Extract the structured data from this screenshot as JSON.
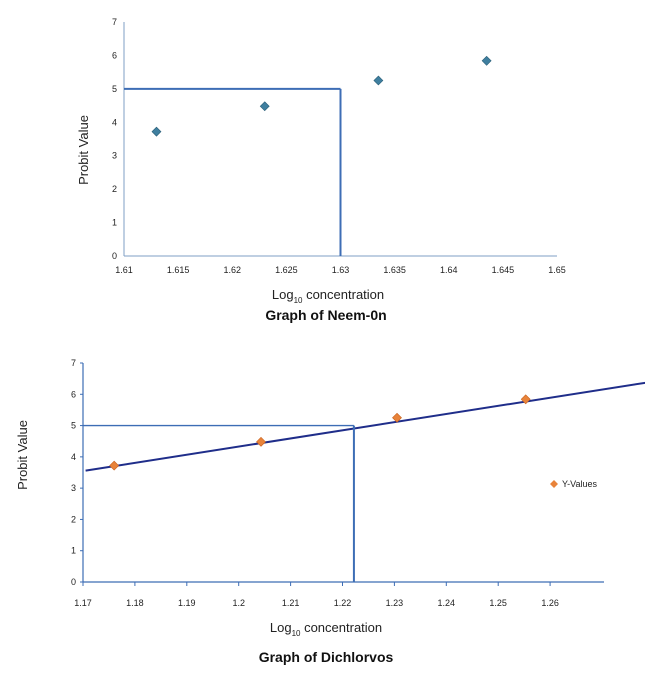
{
  "chart_data": [
    {
      "type": "scatter",
      "title": "Graph  of Neem-0n",
      "xlabel_main": "Log",
      "xlabel_sub": "10",
      "xlabel_rest": " concentration",
      "ylabel": "Probit Value",
      "xlim": [
        1.61,
        1.65
      ],
      "ylim": [
        0,
        7
      ],
      "x_ticks": [
        "1.61",
        "1.615",
        "1.62",
        "1.625",
        "1.63",
        "1.635",
        "1.64",
        "1.645",
        "1.65"
      ],
      "y_ticks": [
        "0",
        "1",
        "2",
        "3",
        "4",
        "5",
        "6",
        "7"
      ],
      "points": [
        {
          "x": 1.613,
          "y": 3.72
        },
        {
          "x": 1.623,
          "y": 4.48
        },
        {
          "x": 1.6335,
          "y": 5.25
        },
        {
          "x": 1.6435,
          "y": 5.84
        }
      ],
      "reference": {
        "x": 1.63,
        "y": 5
      },
      "marker_color": "#3f7f9f",
      "line_color": "#3d6db5",
      "grid": false
    },
    {
      "type": "scatter",
      "title": "Graph of Dichlorvos",
      "xlabel_main": "Log",
      "xlabel_sub": "10",
      "xlabel_rest": " concentration",
      "ylabel": "Probit Value",
      "xlim": [
        1.17,
        1.27
      ],
      "ylim": [
        0,
        7
      ],
      "x_ticks": [
        "1.17",
        "1.18",
        "1.19",
        "1.2",
        "1.21",
        "1.22",
        "1.23",
        "1.24",
        "1.25",
        "1.26"
      ],
      "y_ticks": [
        "0",
        "1",
        "2",
        "3",
        "4",
        "5",
        "6",
        "7"
      ],
      "series": [
        {
          "name": "Y-Values",
          "color": "#e8833a"
        }
      ],
      "points": [
        {
          "x": 1.176,
          "y": 3.72
        },
        {
          "x": 1.2043,
          "y": 4.48
        },
        {
          "x": 1.2305,
          "y": 5.25
        },
        {
          "x": 1.2553,
          "y": 5.84
        }
      ],
      "trendline": {
        "from": [
          1.1705,
          3.56
        ],
        "to": [
          1.2815,
          6.45
        ],
        "color": "#1f2d8a"
      },
      "reference": {
        "x": 1.2222,
        "y": 5
      },
      "legend_position": "right",
      "line_color": "#3d6db5",
      "grid": false
    }
  ]
}
